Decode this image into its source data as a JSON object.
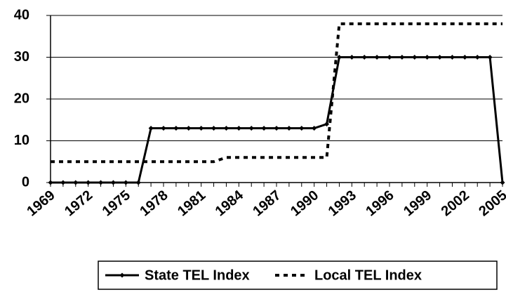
{
  "chart_data": {
    "type": "line",
    "x": [
      1969,
      1970,
      1971,
      1972,
      1973,
      1974,
      1975,
      1976,
      1977,
      1978,
      1979,
      1980,
      1981,
      1982,
      1983,
      1984,
      1985,
      1986,
      1987,
      1988,
      1989,
      1990,
      1991,
      1992,
      1993,
      1994,
      1995,
      1996,
      1997,
      1998,
      1999,
      2000,
      2001,
      2002,
      2003,
      2004,
      2005
    ],
    "series": [
      {
        "name": "State TEL Index",
        "color": "#000000",
        "dash": "solid",
        "values": [
          0,
          0,
          0,
          0,
          0,
          0,
          0,
          0,
          13,
          13,
          13,
          13,
          13,
          13,
          13,
          13,
          13,
          13,
          13,
          13,
          13,
          13,
          14,
          30,
          30,
          30,
          30,
          30,
          30,
          30,
          30,
          30,
          30,
          30,
          30,
          30,
          0
        ]
      },
      {
        "name": "Local TEL Index",
        "color": "#000000",
        "dash": "dashed",
        "values": [
          5,
          5,
          5,
          5,
          5,
          5,
          5,
          5,
          5,
          5,
          5,
          5,
          5,
          5,
          6,
          6,
          6,
          6,
          6,
          6,
          6,
          6,
          6,
          38,
          38,
          38,
          38,
          38,
          38,
          38,
          38,
          38,
          38,
          38,
          38,
          38,
          38
        ]
      }
    ],
    "xlim": [
      1969,
      2005
    ],
    "xticks": [
      1969,
      1972,
      1975,
      1978,
      1981,
      1984,
      1987,
      1990,
      1993,
      1996,
      1999,
      2002,
      2005
    ],
    "ylim": [
      0,
      40
    ],
    "yticks": [
      0,
      10,
      20,
      30,
      40
    ],
    "grid": true,
    "legend": "bottom"
  }
}
